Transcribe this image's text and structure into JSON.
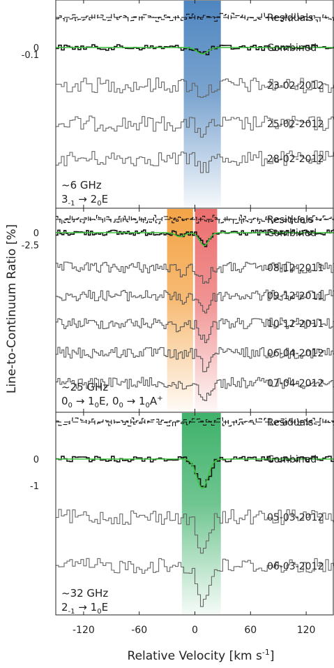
{
  "chart_data": [
    {
      "type": "line",
      "panel": "top",
      "freq_label": "~6 GHz",
      "transition_label": {
        "j1": "3",
        "k1": "-1",
        "j2": "2",
        "k2": "0",
        "sym": "E"
      },
      "ytick_labels": [
        "0",
        "-0.1"
      ],
      "ytick_values": [
        0,
        -0.1
      ],
      "velocity_window_kms": [
        -12,
        28
      ],
      "band_colors": [
        "#4f86c0"
      ],
      "series": [
        {
          "name": "Residuals",
          "style": "dashed-black",
          "absorption_depth": 0
        },
        {
          "name": "Combined",
          "style": "solid-black",
          "fit_color": "#3ac43a",
          "absorption_depth": -0.09,
          "center_kms": 8
        },
        {
          "name": "23-02-2012",
          "style": "grey",
          "absorption_depth": -0.12,
          "center_kms": 8
        },
        {
          "name": "25-02-2012",
          "style": "grey",
          "absorption_depth": -0.12,
          "center_kms": 8
        },
        {
          "name": "28-02-2012",
          "style": "grey",
          "absorption_depth": -0.12,
          "center_kms": 8
        }
      ]
    },
    {
      "type": "line",
      "panel": "middle",
      "freq_label": "~25 GHz",
      "transition_label": {
        "a_j1": "0",
        "a_k1": "0",
        "a_j2": "1",
        "a_k2": "0",
        "a_sym": "E",
        "b_j1": "0",
        "b_k1": "0",
        "b_j2": "1",
        "b_k2": "0",
        "b_sym": "A",
        "b_sup": "+"
      },
      "ytick_labels": [
        "0",
        "-2.5"
      ],
      "ytick_values": [
        0,
        -2.5
      ],
      "velocity_windows_kms": [
        [
          -30,
          -2
        ],
        [
          0,
          24
        ]
      ],
      "band_colors": [
        "#f4a447",
        "#ec6f6f"
      ],
      "series": [
        {
          "name": "Residuals",
          "style": "dashed-black",
          "absorption_depth": 0
        },
        {
          "name": "Combined",
          "style": "solid-black",
          "fit_color": "#3ac43a",
          "absorption_depth": -2.6,
          "center_kms": 10,
          "secondary_center_kms": -16,
          "secondary_depth": -0.8
        },
        {
          "name": "08-12-2011",
          "style": "grey",
          "absorption_depth": -3,
          "center_kms": 10
        },
        {
          "name": "09-12-2011",
          "style": "grey",
          "absorption_depth": -3,
          "center_kms": 10
        },
        {
          "name": "10-12-2011",
          "style": "grey",
          "absorption_depth": -3,
          "center_kms": 10
        },
        {
          "name": "06-04-2012",
          "style": "grey",
          "absorption_depth": -3,
          "center_kms": 10
        },
        {
          "name": "07-04-2012",
          "style": "grey",
          "absorption_depth": -3,
          "center_kms": 10
        }
      ]
    },
    {
      "type": "line",
      "panel": "bottom",
      "freq_label": "~32 GHz",
      "transition_label": {
        "j1": "2",
        "k1": "-1",
        "j2": "1",
        "k2": "0",
        "sym": "E"
      },
      "ytick_labels": [
        "0",
        "-1"
      ],
      "ytick_values": [
        0,
        -1
      ],
      "velocity_window_kms": [
        -14,
        28
      ],
      "band_colors": [
        "#3fb26b"
      ],
      "series": [
        {
          "name": "Residuals",
          "style": "dashed-black",
          "absorption_depth": 0
        },
        {
          "name": "Combined",
          "style": "solid-black",
          "fit_color": "#3ac43a",
          "absorption_depth": -1.1,
          "center_kms": 8
        },
        {
          "name": "05-03-2012",
          "style": "grey",
          "absorption_depth": -1.4,
          "center_kms": 8
        },
        {
          "name": "06-03-2012",
          "style": "grey",
          "absorption_depth": -1.4,
          "center_kms": 8
        }
      ]
    }
  ],
  "shared_axes": {
    "xlabel": "Relative Velocity [km s",
    "xlabel_sup": "-1",
    "xlabel_close": "]",
    "ylabel": "Line-to-Continuum Ratio [%]",
    "xlim": [
      -150,
      150
    ],
    "xticks": [
      -120,
      -60,
      0,
      60,
      120
    ],
    "xtick_labels": [
      "-120",
      "-60",
      "0",
      "60",
      "120"
    ],
    "arrow": "→"
  }
}
